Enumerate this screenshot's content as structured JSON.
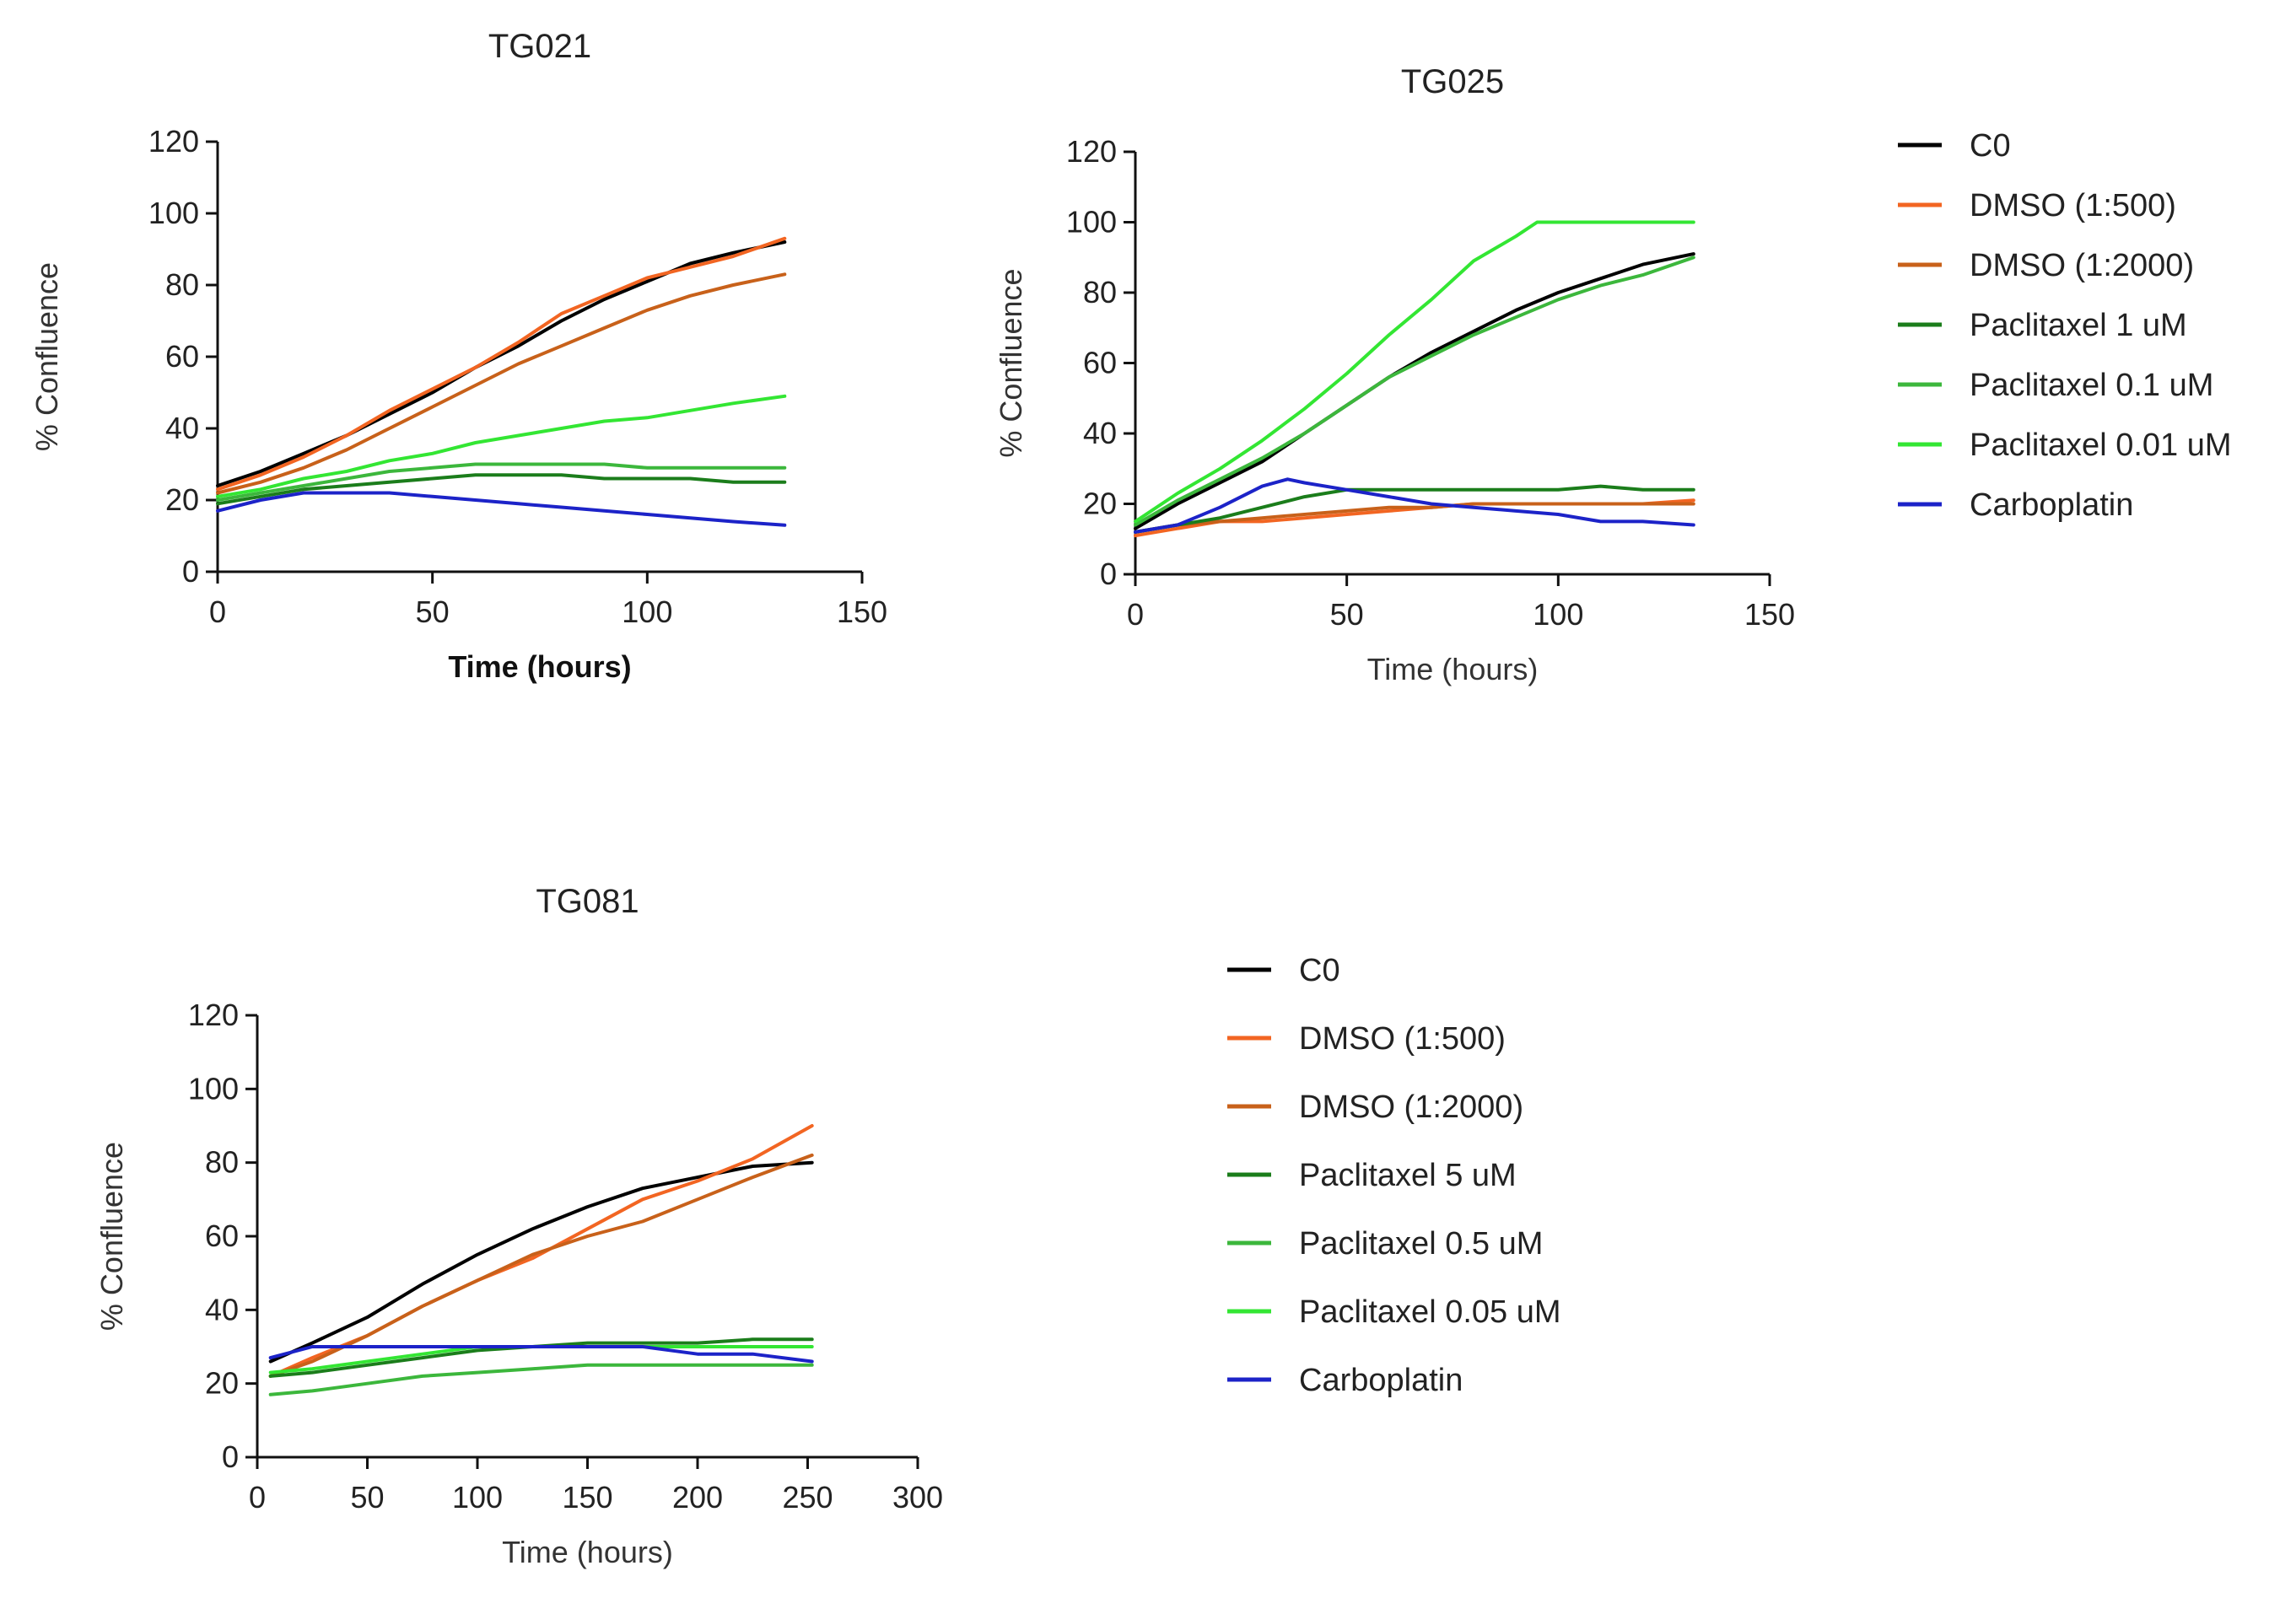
{
  "chart_data": [
    {
      "id": "tg021",
      "type": "line",
      "title": "TG021",
      "xlabel": "Time (hours)",
      "ylabel": "% Confluence",
      "xlim": [
        0,
        150
      ],
      "ylim": [
        0,
        120
      ],
      "xticks": [
        0,
        50,
        100,
        150
      ],
      "yticks": [
        0,
        20,
        40,
        60,
        80,
        100,
        120
      ],
      "xlabel_bold": true,
      "legend": "right",
      "series": [
        {
          "name": "C0",
          "color": "#000000",
          "x": [
            0,
            10,
            20,
            30,
            40,
            50,
            60,
            70,
            80,
            90,
            100,
            110,
            120,
            132
          ],
          "y": [
            24,
            28,
            33,
            38,
            44,
            50,
            57,
            63,
            70,
            76,
            81,
            86,
            89,
            92
          ]
        },
        {
          "name": "DMSO (1:500)",
          "color": "#f26522",
          "x": [
            0,
            10,
            20,
            30,
            40,
            50,
            60,
            70,
            80,
            90,
            100,
            110,
            120,
            132
          ],
          "y": [
            23,
            27,
            32,
            38,
            45,
            51,
            57,
            64,
            72,
            77,
            82,
            85,
            88,
            93
          ]
        },
        {
          "name": "DMSO (1:2000)",
          "color": "#c8611a",
          "x": [
            0,
            10,
            20,
            30,
            40,
            50,
            60,
            70,
            80,
            90,
            100,
            110,
            120,
            132
          ],
          "y": [
            22,
            25,
            29,
            34,
            40,
            46,
            52,
            58,
            63,
            68,
            73,
            77,
            80,
            83
          ]
        },
        {
          "name": "Paclitaxel 1 uM",
          "color": "#1b7d1b",
          "x": [
            0,
            10,
            20,
            30,
            40,
            50,
            60,
            70,
            80,
            90,
            100,
            110,
            120,
            132
          ],
          "y": [
            19,
            21,
            23,
            24,
            25,
            26,
            27,
            27,
            27,
            26,
            26,
            26,
            25,
            25
          ]
        },
        {
          "name": "Paclitaxel 0.1 uM",
          "color": "#3cb73c",
          "x": [
            0,
            10,
            20,
            30,
            40,
            50,
            60,
            70,
            80,
            90,
            100,
            110,
            120,
            132
          ],
          "y": [
            20,
            22,
            24,
            26,
            28,
            29,
            30,
            30,
            30,
            30,
            29,
            29,
            29,
            29
          ]
        },
        {
          "name": "Paclitaxel 0.01 uM",
          "color": "#33e633",
          "x": [
            0,
            10,
            20,
            30,
            40,
            50,
            60,
            70,
            80,
            90,
            100,
            110,
            120,
            132
          ],
          "y": [
            21,
            23,
            26,
            28,
            31,
            33,
            36,
            38,
            40,
            42,
            43,
            45,
            47,
            49
          ]
        },
        {
          "name": "Carboplatin",
          "color": "#1c23c8",
          "x": [
            0,
            10,
            20,
            30,
            40,
            50,
            60,
            70,
            80,
            90,
            100,
            110,
            120,
            132
          ],
          "y": [
            17,
            20,
            22,
            22,
            22,
            21,
            20,
            19,
            18,
            17,
            16,
            15,
            14,
            13
          ]
        }
      ]
    },
    {
      "id": "tg025",
      "type": "line",
      "title": "TG025",
      "xlabel": "Time (hours)",
      "ylabel": "% Confluence",
      "xlim": [
        0,
        150
      ],
      "ylim": [
        0,
        120
      ],
      "xticks": [
        0,
        50,
        100,
        150
      ],
      "yticks": [
        0,
        20,
        40,
        60,
        80,
        100,
        120
      ],
      "xlabel_bold": false,
      "legend": "right",
      "series": [
        {
          "name": "C0",
          "color": "#000000",
          "x": [
            0,
            10,
            20,
            30,
            40,
            50,
            60,
            70,
            80,
            90,
            100,
            110,
            120,
            132
          ],
          "y": [
            13,
            20,
            26,
            32,
            40,
            48,
            56,
            63,
            69,
            75,
            80,
            84,
            88,
            91
          ]
        },
        {
          "name": "DMSO (1:500)",
          "color": "#f26522",
          "x": [
            0,
            10,
            20,
            30,
            40,
            50,
            60,
            70,
            80,
            90,
            100,
            110,
            120,
            132
          ],
          "y": [
            11,
            13,
            15,
            15,
            16,
            17,
            18,
            19,
            20,
            20,
            20,
            20,
            20,
            21
          ]
        },
        {
          "name": "DMSO (1:2000)",
          "color": "#c8611a",
          "x": [
            0,
            10,
            20,
            30,
            40,
            50,
            60,
            70,
            80,
            90,
            100,
            110,
            120,
            132
          ],
          "y": [
            12,
            14,
            15,
            16,
            17,
            18,
            19,
            19,
            20,
            20,
            20,
            20,
            20,
            20
          ]
        },
        {
          "name": "Paclitaxel 1 uM",
          "color": "#1b7d1b",
          "x": [
            0,
            10,
            20,
            30,
            40,
            50,
            60,
            70,
            80,
            90,
            100,
            110,
            120,
            132
          ],
          "y": [
            12,
            14,
            16,
            19,
            22,
            24,
            24,
            24,
            24,
            24,
            24,
            25,
            24,
            24
          ]
        },
        {
          "name": "Paclitaxel 0.1 uM",
          "color": "#3cb73c",
          "x": [
            0,
            10,
            20,
            30,
            40,
            50,
            60,
            70,
            80,
            90,
            100,
            110,
            120,
            132
          ],
          "y": [
            14,
            21,
            27,
            33,
            40,
            48,
            56,
            62,
            68,
            73,
            78,
            82,
            85,
            90
          ]
        },
        {
          "name": "Paclitaxel 0.01 uM",
          "color": "#33e633",
          "x": [
            0,
            10,
            20,
            30,
            40,
            50,
            60,
            70,
            80,
            90,
            95,
            100,
            110,
            120,
            132
          ],
          "y": [
            15,
            23,
            30,
            38,
            47,
            57,
            68,
            78,
            89,
            96,
            100,
            100,
            100,
            100,
            100
          ]
        },
        {
          "name": "Carboplatin",
          "color": "#1c23c8",
          "x": [
            0,
            10,
            20,
            30,
            36,
            40,
            50,
            60,
            70,
            80,
            90,
            100,
            110,
            120,
            132
          ],
          "y": [
            12,
            14,
            19,
            25,
            27,
            26,
            24,
            22,
            20,
            19,
            18,
            17,
            15,
            15,
            14
          ]
        }
      ]
    },
    {
      "id": "tg081",
      "type": "line",
      "title": "TG081",
      "xlabel": "Time (hours)",
      "ylabel": "% Confluence",
      "xlim": [
        0,
        300
      ],
      "ylim": [
        0,
        120
      ],
      "xticks": [
        0,
        50,
        100,
        150,
        200,
        250,
        300
      ],
      "yticks": [
        0,
        20,
        40,
        60,
        80,
        100,
        120
      ],
      "xlabel_bold": false,
      "legend": "right",
      "series": [
        {
          "name": "C0",
          "color": "#000000",
          "x": [
            6,
            25,
            50,
            75,
            100,
            125,
            150,
            175,
            200,
            225,
            252
          ],
          "y": [
            26,
            31,
            38,
            47,
            55,
            62,
            68,
            73,
            76,
            79,
            80
          ]
        },
        {
          "name": "DMSO (1:500)",
          "color": "#f26522",
          "x": [
            6,
            25,
            50,
            75,
            100,
            125,
            150,
            175,
            200,
            225,
            252
          ],
          "y": [
            22,
            27,
            33,
            41,
            48,
            54,
            62,
            70,
            75,
            81,
            90
          ]
        },
        {
          "name": "DMSO (1:2000)",
          "color": "#c8611a",
          "x": [
            6,
            25,
            50,
            75,
            100,
            125,
            150,
            175,
            200,
            225,
            252
          ],
          "y": [
            22,
            26,
            33,
            41,
            48,
            55,
            60,
            64,
            70,
            76,
            82
          ]
        },
        {
          "name": "Paclitaxel 5 uM",
          "color": "#1b7d1b",
          "x": [
            6,
            25,
            50,
            75,
            100,
            125,
            150,
            175,
            200,
            225,
            252
          ],
          "y": [
            22,
            23,
            25,
            27,
            29,
            30,
            31,
            31,
            31,
            32,
            32
          ]
        },
        {
          "name": "Paclitaxel 0.5 uM",
          "color": "#3cb73c",
          "x": [
            6,
            25,
            50,
            75,
            100,
            125,
            150,
            175,
            200,
            225,
            252
          ],
          "y": [
            17,
            18,
            20,
            22,
            23,
            24,
            25,
            25,
            25,
            25,
            25
          ]
        },
        {
          "name": "Paclitaxel 0.05 uM",
          "color": "#33e633",
          "x": [
            6,
            25,
            50,
            75,
            100,
            125,
            150,
            175,
            200,
            225,
            252
          ],
          "y": [
            23,
            24,
            26,
            28,
            30,
            30,
            30,
            30,
            30,
            30,
            30
          ]
        },
        {
          "name": "Carboplatin",
          "color": "#1c23c8",
          "x": [
            6,
            25,
            50,
            75,
            100,
            125,
            150,
            175,
            200,
            225,
            252
          ],
          "y": [
            27,
            30,
            30,
            30,
            30,
            30,
            30,
            30,
            28,
            28,
            26
          ]
        }
      ]
    }
  ]
}
